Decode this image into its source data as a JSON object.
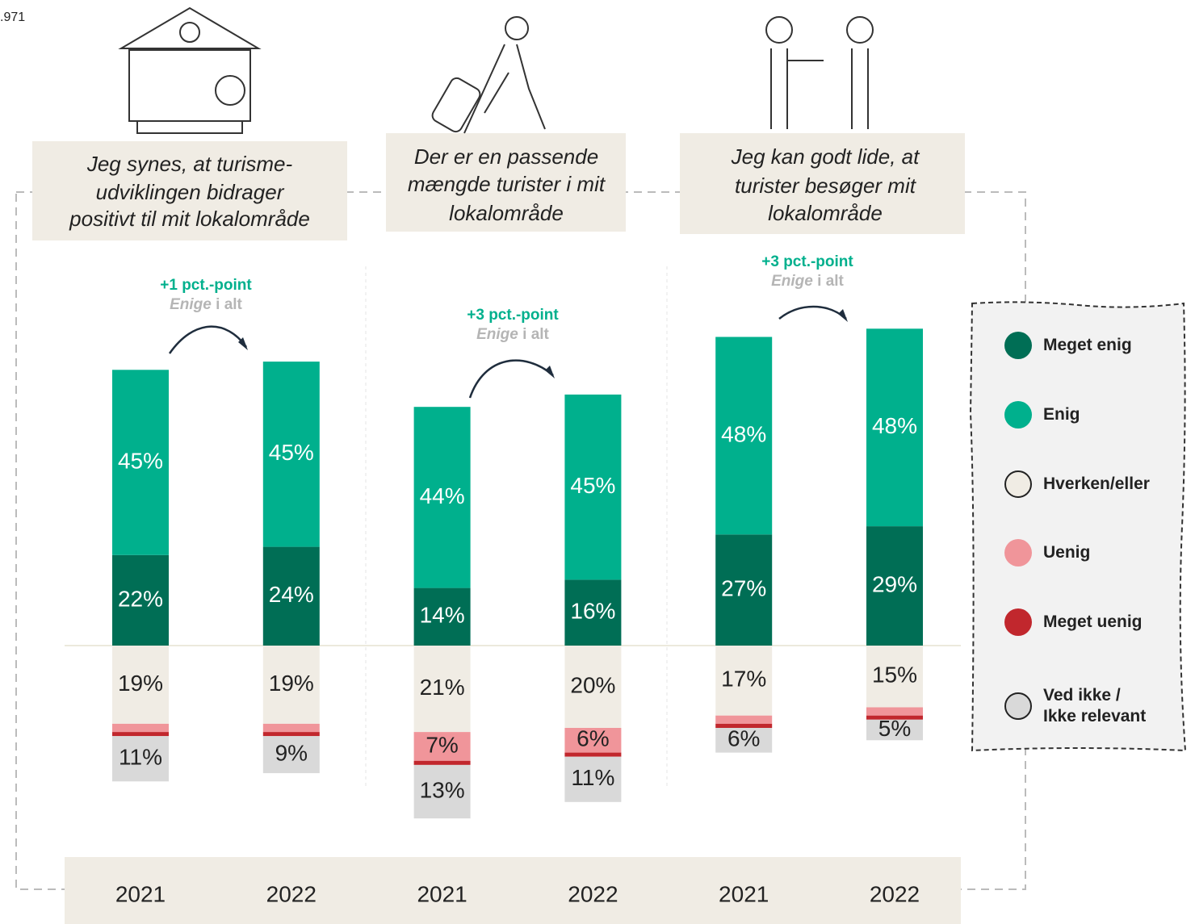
{
  "chart_data": {
    "type": "bar",
    "stacked": true,
    "diverging": true,
    "sample_note": ".971",
    "categories": [
      "2021",
      "2022",
      "2021",
      "2022",
      "2021",
      "2022"
    ],
    "groups": [
      {
        "title_lines": [
          "Jeg synes, at turisme-",
          "udviklingen bidrager",
          "positivt til mit lokalområde"
        ],
        "change": "+1 pct.-point",
        "note_emphasis": "Enige",
        "note_rest": "i alt"
      },
      {
        "title_lines": [
          "Der er en passende",
          "mængde turister i mit",
          "lokalområde"
        ],
        "change": "+3 pct.-point",
        "note_emphasis": "Enige",
        "note_rest": "i alt"
      },
      {
        "title_lines": [
          "Jeg kan godt lide, at",
          "turister besøger mit",
          "lokalområde"
        ],
        "change": "+3 pct.-point",
        "note_emphasis": "Enige",
        "note_rest": "i alt"
      }
    ],
    "series": [
      {
        "name": "Meget enig",
        "color": "#006e55",
        "values": [
          22,
          24,
          14,
          16,
          27,
          29
        ],
        "value_labels": [
          "22%",
          "24%",
          "14%",
          "16%",
          "27%",
          "29%"
        ]
      },
      {
        "name": "Enig",
        "color": "#00b08d",
        "values": [
          45,
          45,
          44,
          45,
          48,
          48
        ],
        "value_labels": [
          "45%",
          "45%",
          "44%",
          "45%",
          "48%",
          "48%"
        ]
      },
      {
        "name": "Hverken/eller",
        "color": "#f0ece4",
        "values": [
          19,
          19,
          21,
          20,
          17,
          15
        ],
        "value_labels": [
          "19%",
          "19%",
          "21%",
          "20%",
          "17%",
          "15%"
        ]
      },
      {
        "name": "Uenig",
        "color": "#f0959a",
        "values": [
          2,
          2,
          7,
          6,
          2,
          2
        ],
        "value_labels": [
          null,
          null,
          "7%",
          "6%",
          null,
          null
        ]
      },
      {
        "name": "Meget uenig",
        "color": "#c1272d",
        "values": [
          1,
          1,
          1,
          1,
          1,
          1
        ],
        "value_labels": [
          null,
          null,
          null,
          null,
          null,
          null
        ]
      },
      {
        "name": "Ved ikke / Ikke relevant",
        "color": "#d9d9d9",
        "values": [
          11,
          9,
          13,
          11,
          6,
          5
        ],
        "value_labels": [
          "11%",
          "9%",
          "13%",
          "11%",
          "6%",
          "5%"
        ]
      }
    ]
  }
}
